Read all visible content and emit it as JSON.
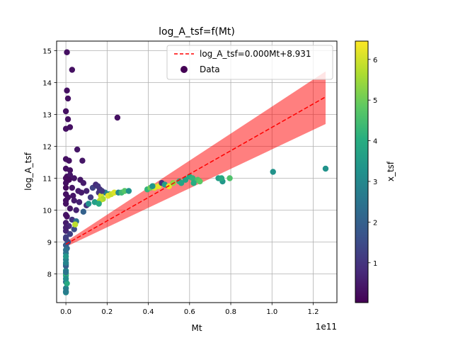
{
  "chart_data": {
    "type": "scatter",
    "title": "log_A_tsf=f(Mt)",
    "xlabel": "Mt",
    "ylabel": "log_A_tsf",
    "x_scale_label": "1e11",
    "xlim": [
      -0.045,
      1.315
    ],
    "ylim": [
      7.1,
      15.3
    ],
    "x_ticks": [
      0.0,
      0.2,
      0.4,
      0.6,
      0.8,
      1.0,
      1.2
    ],
    "x_tick_labels": [
      "0.0",
      "0.2",
      "0.4",
      "0.6",
      "0.8",
      "1.0",
      "1.2"
    ],
    "y_ticks": [
      8,
      9,
      10,
      11,
      12,
      13,
      14,
      15
    ],
    "y_tick_labels": [
      "8",
      "9",
      "10",
      "11",
      "12",
      "13",
      "14",
      "15"
    ],
    "grid": true,
    "legend_position": "upper-right",
    "fit": {
      "name": "log_A_tsf=0.000Mt+8.931",
      "color": "#ff0000",
      "style": "dashed",
      "x_range": [
        0.0,
        1.26
      ],
      "y_start": 8.93,
      "y_end": 13.55,
      "band_color": "#ff0000",
      "band_lower_end": 12.7,
      "band_upper_end": 14.35,
      "band_lower_start": 8.85,
      "band_upper_start": 9.01
    },
    "colorbar": {
      "label": "x_tsf",
      "range": [
        0.02,
        6.45
      ],
      "ticks": [
        1,
        2,
        3,
        4,
        5,
        6
      ],
      "tick_labels": [
        "1",
        "2",
        "3",
        "4",
        "5",
        "6"
      ],
      "colormap": "viridis"
    },
    "series": [
      {
        "name": "Data",
        "columns": [
          "Mt_1e11",
          "log_A_tsf",
          "x_tsf"
        ],
        "points": [
          [
            0.005,
            14.95,
            0.3
          ],
          [
            0.03,
            14.4,
            0.3
          ],
          [
            0.005,
            13.75,
            0.3
          ],
          [
            0.01,
            13.5,
            0.3
          ],
          [
            0.0,
            13.1,
            0.3
          ],
          [
            0.01,
            12.85,
            0.3
          ],
          [
            0.02,
            12.6,
            0.3
          ],
          [
            0.0,
            12.55,
            0.3
          ],
          [
            0.25,
            12.9,
            0.3
          ],
          [
            0.055,
            11.9,
            0.4
          ],
          [
            0.08,
            11.55,
            0.4
          ],
          [
            0.0,
            11.6,
            0.3
          ],
          [
            0.015,
            11.55,
            0.3
          ],
          [
            0.0,
            11.3,
            0.3
          ],
          [
            0.02,
            11.25,
            0.3
          ],
          [
            0.005,
            11.05,
            0.3
          ],
          [
            0.02,
            11.1,
            0.4
          ],
          [
            0.04,
            11.0,
            0.4
          ],
          [
            0.07,
            10.95,
            0.4
          ],
          [
            0.085,
            10.85,
            0.5
          ],
          [
            0.0,
            10.85,
            0.3
          ],
          [
            0.03,
            10.7,
            0.4
          ],
          [
            0.06,
            10.6,
            0.5
          ],
          [
            0.075,
            10.55,
            0.5
          ],
          [
            0.1,
            10.6,
            0.6
          ],
          [
            0.0,
            10.5,
            0.3
          ],
          [
            0.01,
            10.4,
            0.3
          ],
          [
            0.04,
            10.3,
            0.5
          ],
          [
            0.065,
            10.25,
            0.6
          ],
          [
            0.1,
            10.15,
            0.9
          ],
          [
            0.12,
            10.4,
            1.1
          ],
          [
            0.13,
            10.7,
            1.3
          ],
          [
            0.0,
            10.2,
            0.3
          ],
          [
            0.02,
            10.05,
            0.4
          ],
          [
            0.05,
            10.0,
            0.6
          ],
          [
            0.085,
            9.95,
            2.0
          ],
          [
            0.11,
            10.2,
            3.2
          ],
          [
            0.0,
            9.85,
            0.4
          ],
          [
            0.03,
            9.7,
            1.0
          ],
          [
            0.05,
            9.65,
            2.4
          ],
          [
            0.0,
            9.6,
            0.5
          ],
          [
            0.015,
            9.5,
            0.8
          ],
          [
            0.04,
            9.4,
            1.5
          ],
          [
            0.045,
            9.55,
            5.8
          ],
          [
            0.0,
            9.35,
            0.7
          ],
          [
            0.02,
            9.25,
            1.2
          ],
          [
            0.0,
            9.1,
            1.0
          ],
          [
            0.01,
            9.0,
            1.5
          ],
          [
            0.0,
            8.9,
            1.8
          ],
          [
            0.005,
            8.8,
            2.1
          ],
          [
            0.0,
            8.65,
            2.6
          ],
          [
            0.0,
            8.45,
            2.8
          ],
          [
            0.0,
            8.3,
            3.0
          ],
          [
            0.0,
            8.1,
            3.3
          ],
          [
            0.0,
            7.95,
            3.6
          ],
          [
            0.0,
            7.75,
            2.3
          ],
          [
            0.0,
            7.55,
            2.8
          ],
          [
            0.0,
            7.42,
            3.1
          ],
          [
            0.0,
            7.45,
            2.7
          ],
          [
            0.005,
            7.7,
            3.9
          ],
          [
            0.0,
            8.0,
            4.3
          ],
          [
            0.0,
            8.25,
            2.0
          ],
          [
            0.0,
            10.7,
            0.2
          ],
          [
            0.0,
            10.3,
            0.3
          ],
          [
            0.005,
            9.8,
            0.3
          ],
          [
            0.0,
            9.45,
            0.6
          ],
          [
            0.0,
            9.15,
            1.2
          ],
          [
            0.0,
            8.75,
            2.4
          ],
          [
            0.0,
            8.55,
            3.4
          ],
          [
            0.0,
            8.35,
            2.9
          ],
          [
            0.0,
            8.05,
            2.5
          ],
          [
            0.0,
            7.85,
            3.2
          ],
          [
            0.015,
            10.95,
            0.2
          ],
          [
            0.035,
            10.45,
            0.4
          ],
          [
            0.0,
            11.0,
            0.2
          ],
          [
            0.145,
            10.8,
            0.8
          ],
          [
            0.165,
            10.65,
            0.8
          ],
          [
            0.16,
            10.55,
            1.0
          ],
          [
            0.19,
            10.55,
            2.8
          ],
          [
            0.21,
            10.5,
            2.9
          ],
          [
            0.17,
            10.45,
            6.0
          ],
          [
            0.205,
            10.45,
            6.2
          ],
          [
            0.22,
            10.5,
            5.9
          ],
          [
            0.235,
            10.55,
            6.1
          ],
          [
            0.18,
            10.35,
            5.6
          ],
          [
            0.165,
            10.3,
            5.8
          ],
          [
            0.14,
            10.25,
            3.6
          ],
          [
            0.16,
            10.2,
            3.9
          ],
          [
            0.255,
            10.55,
            3.0
          ],
          [
            0.27,
            10.55,
            4.4
          ],
          [
            0.285,
            10.6,
            4.7
          ],
          [
            0.305,
            10.6,
            3.3
          ],
          [
            0.155,
            10.75,
            1.0
          ],
          [
            0.175,
            10.6,
            1.1
          ],
          [
            0.395,
            10.65,
            4.2
          ],
          [
            0.41,
            10.7,
            5.0
          ],
          [
            0.425,
            10.75,
            5.7
          ],
          [
            0.43,
            10.7,
            6.1
          ],
          [
            0.45,
            10.75,
            6.2
          ],
          [
            0.465,
            10.85,
            0.9
          ],
          [
            0.48,
            10.8,
            3.6
          ],
          [
            0.5,
            10.75,
            6.3
          ],
          [
            0.52,
            10.85,
            5.4
          ],
          [
            0.55,
            10.9,
            4.1
          ],
          [
            0.56,
            10.85,
            3.8
          ],
          [
            0.58,
            10.95,
            3.7
          ],
          [
            0.6,
            11.05,
            3.9
          ],
          [
            0.615,
            11.0,
            4.2
          ],
          [
            0.64,
            10.95,
            4.6
          ],
          [
            0.65,
            10.9,
            4.8
          ],
          [
            0.62,
            10.85,
            4.0
          ],
          [
            0.42,
            10.75,
            3.3
          ],
          [
            0.74,
            11.0,
            3.6
          ],
          [
            0.76,
            10.9,
            3.4
          ],
          [
            0.755,
            11.0,
            3.9
          ],
          [
            0.795,
            11.0,
            4.6
          ],
          [
            1.005,
            11.2,
            3.3
          ],
          [
            1.26,
            11.3,
            3.3
          ]
        ]
      }
    ]
  }
}
